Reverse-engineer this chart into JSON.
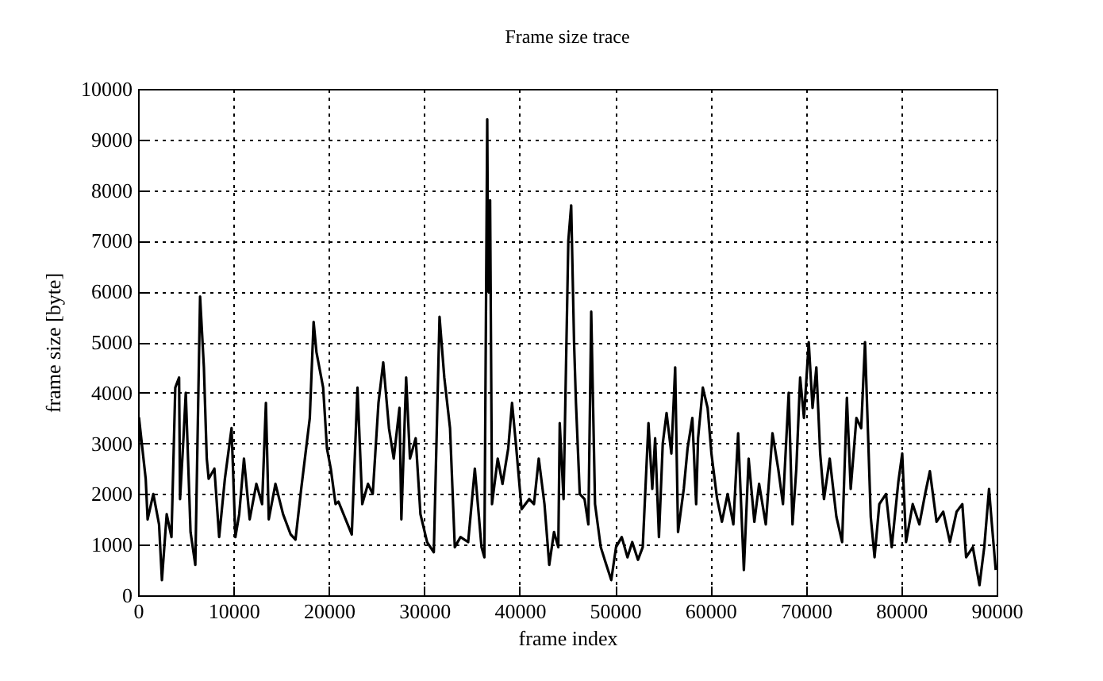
{
  "chart_data": {
    "type": "line",
    "title": "Frame size trace",
    "xlabel": "frame index",
    "ylabel": "frame size [byte]",
    "xlim": [
      0,
      90000
    ],
    "xticks": [
      0,
      10000,
      20000,
      30000,
      40000,
      50000,
      60000,
      70000,
      80000,
      90000
    ],
    "ylim": [
      0,
      10000
    ],
    "yticks": [
      0,
      1000,
      2000,
      3000,
      4000,
      5000,
      6000,
      7000,
      8000,
      9000,
      10000
    ],
    "grid": true,
    "marker": "none",
    "line_style": "solid",
    "series": [
      {
        "color": "#000000",
        "x": [
          0,
          100,
          800,
          1000,
          1600,
          2200,
          2500,
          3000,
          3500,
          3900,
          4300,
          4400,
          4700,
          5000,
          5500,
          6000,
          6500,
          6900,
          7200,
          7400,
          8000,
          8500,
          9100,
          9800,
          10200,
          10600,
          11100,
          11700,
          12400,
          13000,
          13400,
          13700,
          14400,
          15200,
          16000,
          16500,
          17100,
          18000,
          18400,
          18700,
          19400,
          19800,
          20200,
          20700,
          21000,
          22400,
          23000,
          23500,
          24100,
          24600,
          25200,
          25700,
          26300,
          26800,
          27400,
          27600,
          28100,
          28500,
          29100,
          29600,
          30300,
          31000,
          31600,
          32100,
          32700,
          33200,
          33800,
          34600,
          35300,
          36000,
          36300,
          36600,
          36700,
          36900,
          37100,
          37700,
          38200,
          38800,
          39200,
          39600,
          40200,
          41000,
          41500,
          42000,
          42600,
          43100,
          43600,
          44050,
          44200,
          44600,
          45100,
          45400,
          45700,
          45900,
          46300,
          46800,
          47200,
          47500,
          47900,
          48500,
          49000,
          49600,
          50100,
          50700,
          51300,
          51800,
          52400,
          52900,
          53500,
          53900,
          54200,
          54600,
          55000,
          55400,
          55900,
          56300,
          56600,
          57200,
          57600,
          58100,
          58500,
          58700,
          59200,
          59700,
          60100,
          60700,
          61200,
          61800,
          62400,
          62900,
          63500,
          64000,
          64600,
          65100,
          65800,
          66500,
          67100,
          67600,
          68200,
          68600,
          69000,
          69400,
          69800,
          70300,
          70700,
          71100,
          71500,
          71900,
          72500,
          73200,
          73800,
          74300,
          74700,
          75300,
          75800,
          76200,
          76800,
          77200,
          77700,
          78400,
          79000,
          79700,
          80100,
          80500,
          81200,
          81900,
          82500,
          83000,
          83700,
          84400,
          85100,
          85800,
          86400,
          86800,
          87500,
          88200,
          88700,
          89200,
          89500,
          89900
        ],
        "values": [
          200,
          3500,
          2300,
          1500,
          2000,
          1400,
          300,
          1600,
          1150,
          4100,
          4300,
          1900,
          2900,
          4000,
          1250,
          600,
          5900,
          4500,
          2700,
          2300,
          2500,
          1150,
          2300,
          3300,
          1150,
          1600,
          2700,
          1500,
          2200,
          1800,
          3800,
          1500,
          2200,
          1600,
          1200,
          1100,
          2100,
          3500,
          5400,
          4800,
          4100,
          2900,
          2500,
          1800,
          1850,
          1200,
          4100,
          1800,
          2200,
          2000,
          3800,
          4600,
          3300,
          2700,
          3700,
          1500,
          4300,
          2700,
          3100,
          1600,
          1050,
          850,
          5500,
          4300,
          3300,
          950,
          1150,
          1050,
          2500,
          950,
          750,
          9400,
          6000,
          7800,
          1800,
          2700,
          2200,
          2900,
          3800,
          3000,
          1700,
          1900,
          1800,
          2700,
          1800,
          600,
          1250,
          950,
          3400,
          1900,
          7000,
          7700,
          5000,
          3800,
          2000,
          1900,
          1400,
          5600,
          1800,
          950,
          650,
          300,
          950,
          1150,
          750,
          1050,
          700,
          950,
          3400,
          2100,
          3100,
          1150,
          3000,
          3600,
          2800,
          4500,
          1250,
          2100,
          2900,
          3500,
          1800,
          3100,
          4100,
          3700,
          2800,
          1900,
          1450,
          2000,
          1400,
          3200,
          500,
          2700,
          1450,
          2200,
          1400,
          3200,
          2500,
          1800,
          4000,
          1400,
          2500,
          4300,
          3500,
          5000,
          3700,
          4500,
          2800,
          1900,
          2700,
          1550,
          1050,
          3900,
          2100,
          3500,
          3300,
          5000,
          1550,
          750,
          1800,
          2000,
          950,
          2250,
          2800,
          1050,
          1800,
          1400,
          2000,
          2450,
          1450,
          1650,
          1050,
          1650,
          1800,
          750,
          950,
          200,
          950,
          2100,
          1400,
          500
        ]
      }
    ]
  }
}
